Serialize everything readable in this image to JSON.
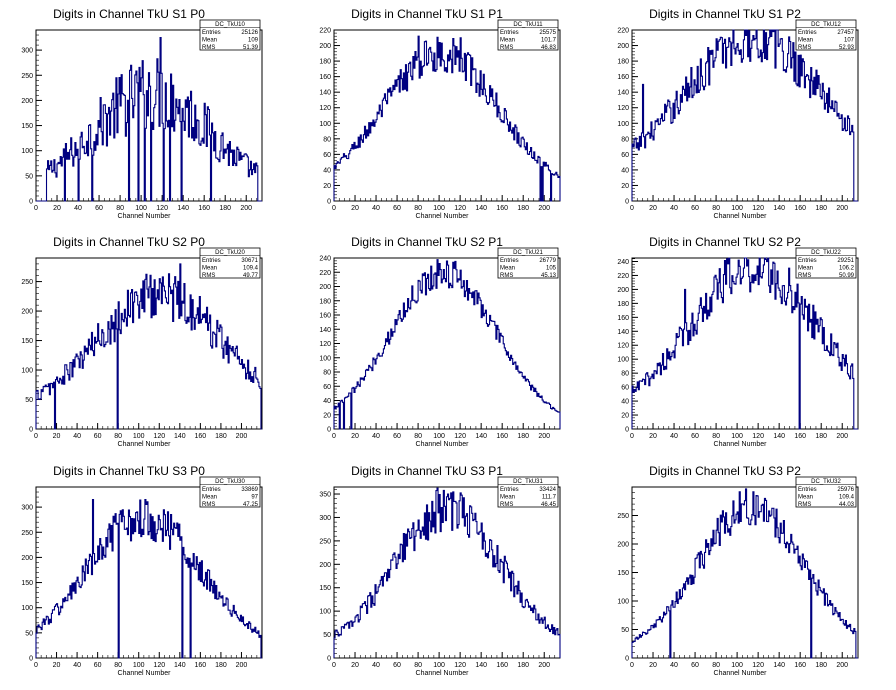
{
  "colors": {
    "line": "#000080",
    "axis": "#000000",
    "background": "#ffffff"
  },
  "stats_labels": {
    "entries": "Entries",
    "mean": "Mean",
    "rms": "RMS"
  },
  "chart_data": [
    {
      "type": "histogram",
      "title": "Digits in Channel TkU S1 P0",
      "xlabel": "Channel Number",
      "ylabel": "",
      "xlim": [
        0,
        215
      ],
      "ylim": [
        0,
        340
      ],
      "xticks": [
        0,
        20,
        40,
        60,
        80,
        100,
        120,
        140,
        160,
        180,
        200
      ],
      "yticks": [
        0,
        50,
        100,
        150,
        200,
        250,
        300
      ],
      "stats": {
        "name": "DC_TkU10",
        "entries": "25126",
        "mean": "109",
        "rms": "51.39"
      },
      "shape": {
        "mean": 109,
        "sigma": 55,
        "peak": 195,
        "offset": 20,
        "noise": 0.22,
        "edge_low": 10,
        "edge_high": 210
      },
      "spikes": [
        {
          "x": 118,
          "y": 325
        },
        {
          "x": 100,
          "y": 245
        },
        {
          "x": 130,
          "y": 230
        }
      ],
      "zeros": [
        4,
        27,
        40,
        53,
        88,
        97,
        103,
        109,
        121,
        127,
        138,
        166
      ]
    },
    {
      "type": "histogram",
      "title": "Digits in Channel TkU S1 P1",
      "xlabel": "Channel Number",
      "ylabel": "",
      "xlim": [
        0,
        215
      ],
      "ylim": [
        0,
        220
      ],
      "xticks": [
        0,
        20,
        40,
        60,
        80,
        100,
        120,
        140,
        160,
        180,
        200
      ],
      "yticks": [
        0,
        20,
        40,
        60,
        80,
        100,
        120,
        140,
        160,
        180,
        200,
        220
      ],
      "stats": {
        "name": "DC_TkU11",
        "entries": "25575",
        "mean": "101.7",
        "rms": "46.83"
      },
      "shape": {
        "mean": 101,
        "sigma": 55,
        "peak": 180,
        "offset": 10,
        "noise": 0.08,
        "edge_low": 0,
        "edge_high": 214
      },
      "spikes": [
        {
          "x": 80,
          "y": 212
        },
        {
          "x": 120,
          "y": 210
        }
      ],
      "zeros": [
        196,
        198,
        206
      ]
    },
    {
      "type": "histogram",
      "title": "Digits in Channel TkU S1 P2",
      "xlabel": "Channel Number",
      "ylabel": "",
      "xlim": [
        0,
        215
      ],
      "ylim": [
        0,
        220
      ],
      "xticks": [
        0,
        20,
        40,
        60,
        80,
        100,
        120,
        140,
        160,
        180,
        200
      ],
      "yticks": [
        0,
        20,
        40,
        60,
        80,
        100,
        120,
        140,
        160,
        180,
        200,
        220
      ],
      "stats": {
        "name": "DC_TkU12",
        "entries": "27457",
        "mean": "107",
        "rms": "52.93"
      },
      "shape": {
        "mean": 115,
        "sigma": 65,
        "peak": 180,
        "offset": 30,
        "noise": 0.1,
        "edge_low": 0,
        "edge_high": 210
      },
      "spikes": [
        {
          "x": 130,
          "y": 210
        },
        {
          "x": 10,
          "y": 150
        }
      ],
      "zeros": []
    },
    {
      "type": "histogram",
      "title": "Digits in Channel TkU S2 P0",
      "xlabel": "Channel Number",
      "ylabel": "",
      "xlim": [
        0,
        220
      ],
      "ylim": [
        0,
        290
      ],
      "xticks": [
        0,
        20,
        40,
        60,
        80,
        100,
        120,
        140,
        160,
        180,
        200
      ],
      "yticks": [
        0,
        50,
        100,
        150,
        200,
        250
      ],
      "stats": {
        "name": "DC_TkU20",
        "entries": "30671",
        "mean": "109.4",
        "rms": "49.77"
      },
      "shape": {
        "mean": 120,
        "sigma": 60,
        "peak": 200,
        "offset": 30,
        "noise": 0.12,
        "edge_low": 0,
        "edge_high": 218
      },
      "spikes": [
        {
          "x": 140,
          "y": 280
        },
        {
          "x": 120,
          "y": 255
        }
      ],
      "zeros": [
        18,
        79
      ]
    },
    {
      "type": "histogram",
      "title": "Digits in Channel TkU S2 P1",
      "xlabel": "Channel Number",
      "ylabel": "",
      "xlim": [
        0,
        215
      ],
      "ylim": [
        0,
        240
      ],
      "xticks": [
        0,
        20,
        40,
        60,
        80,
        100,
        120,
        140,
        160,
        180,
        200
      ],
      "yticks": [
        0,
        20,
        40,
        60,
        80,
        100,
        120,
        140,
        160,
        180,
        200,
        220,
        240
      ],
      "stats": {
        "name": "DC_TkU21",
        "entries": "26779",
        "mean": "105",
        "rms": "45.13"
      },
      "shape": {
        "mean": 104,
        "sigma": 50,
        "peak": 215,
        "offset": 5,
        "noise": 0.06,
        "edge_low": 0,
        "edge_high": 214
      },
      "spikes": [
        {
          "x": 108,
          "y": 230
        }
      ],
      "zeros": [
        5,
        9,
        16
      ]
    },
    {
      "type": "histogram",
      "title": "Digits in Channel TkU S2 P2",
      "xlabel": "Channel Number",
      "ylabel": "",
      "xlim": [
        0,
        215
      ],
      "ylim": [
        0,
        245
      ],
      "xticks": [
        0,
        20,
        40,
        60,
        80,
        100,
        120,
        140,
        160,
        180,
        200
      ],
      "yticks": [
        0,
        20,
        40,
        60,
        80,
        100,
        120,
        140,
        160,
        180,
        200,
        220,
        240
      ],
      "stats": {
        "name": "DC_TkU22",
        "entries": "29251",
        "mean": "106.2",
        "rms": "50.99"
      },
      "shape": {
        "mean": 115,
        "sigma": 60,
        "peak": 210,
        "offset": 20,
        "noise": 0.1,
        "edge_low": 0,
        "edge_high": 210
      },
      "spikes": [
        {
          "x": 125,
          "y": 235
        },
        {
          "x": 50,
          "y": 200
        }
      ],
      "zeros": [
        159
      ]
    },
    {
      "type": "histogram",
      "title": "Digits in Channel TkU S3 P0",
      "xlabel": "Channel Number",
      "ylabel": "",
      "xlim": [
        0,
        220
      ],
      "ylim": [
        0,
        340
      ],
      "xticks": [
        0,
        20,
        40,
        60,
        80,
        100,
        120,
        140,
        160,
        180,
        200
      ],
      "yticks": [
        0,
        50,
        100,
        150,
        200,
        250,
        300
      ],
      "stats": {
        "name": "DC_TkU30",
        "entries": "33869",
        "mean": "97",
        "rms": "47.25"
      },
      "shape": {
        "mean": 105,
        "sigma": 55,
        "peak": 265,
        "offset": 15,
        "noise": 0.1,
        "edge_low": 0,
        "edge_high": 218
      },
      "spikes": [
        {
          "x": 55,
          "y": 315
        }
      ],
      "zeros": [
        80,
        142,
        150
      ]
    },
    {
      "type": "histogram",
      "title": "Digits in Channel TkU S3 P1",
      "xlabel": "Channel Number",
      "ylabel": "",
      "xlim": [
        0,
        215
      ],
      "ylim": [
        0,
        365
      ],
      "xticks": [
        0,
        20,
        40,
        60,
        80,
        100,
        120,
        140,
        160,
        180,
        200
      ],
      "yticks": [
        0,
        50,
        100,
        150,
        200,
        250,
        300,
        350
      ],
      "stats": {
        "name": "DC_TkU31",
        "entries": "33424",
        "mean": "111.7",
        "rms": "46.45"
      },
      "shape": {
        "mean": 108,
        "sigma": 50,
        "peak": 300,
        "offset": 20,
        "noise": 0.1,
        "edge_low": 0,
        "edge_high": 214
      },
      "spikes": [
        {
          "x": 108,
          "y": 350
        }
      ],
      "zeros": []
    },
    {
      "type": "histogram",
      "title": "Digits in Channel TkU S3 P2",
      "xlabel": "Channel Number",
      "ylabel": "",
      "xlim": [
        0,
        215
      ],
      "ylim": [
        0,
        300
      ],
      "xticks": [
        0,
        20,
        40,
        60,
        80,
        100,
        120,
        140,
        160,
        180,
        200
      ],
      "yticks": [
        0,
        50,
        100,
        150,
        200,
        250
      ],
      "stats": {
        "name": "DC_TkU32",
        "entries": "25976",
        "mean": "109.4",
        "rms": "44.03"
      },
      "shape": {
        "mean": 113,
        "sigma": 50,
        "peak": 255,
        "offset": 10,
        "noise": 0.08,
        "edge_low": 0,
        "edge_high": 212
      },
      "spikes": [
        {
          "x": 118,
          "y": 285
        }
      ],
      "zeros": [
        36,
        170
      ]
    }
  ]
}
